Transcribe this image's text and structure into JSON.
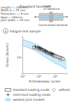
{
  "chart_data": {
    "type": "scatter",
    "title": "Standard fastener",
    "annotations": [
      "Length l = 300 mm\nWidth b = 75 mm\nThickness t = 8 mm\nSpan = 200mm\nJoint width = 25 mm",
      "Layer\nof adhesive",
      "Constrained fastener",
      "A",
      "Fatigue test sample"
    ],
    "xlabel": "N breakaway cycles",
    "ylabel": "Stress (N/mm²)",
    "log": true,
    "xlim": [
      10000,
      5000000
    ],
    "ylim": [
      300,
      5000
    ],
    "xticks": [
      {
        "value": 10000,
        "label": "10⁴"
      },
      {
        "value": 100000,
        "label": "10⁵"
      },
      {
        "value": 1000000,
        "label": "10⁶"
      }
    ],
    "yticks": [
      {
        "value": 1000,
        "label": "10³"
      }
    ],
    "grid": false,
    "legend": "bottom",
    "series": [
      {
        "name": "standard loading mode",
        "type": "scatter",
        "marker": "square",
        "color": "#444444",
        "x": [
          50000,
          80000,
          100000,
          120000,
          150000,
          200000,
          250000,
          300000,
          400000,
          500000,
          600000,
          700000,
          800000,
          1000000,
          1200000,
          1500000,
          2000000,
          2500000,
          3000000
        ],
        "values": [
          2200,
          2100,
          2000,
          1900,
          1800,
          1700,
          1600,
          1500,
          1400,
          1350,
          1300,
          1250,
          1200,
          1150,
          1100,
          1050,
          1000,
          950,
          900
        ]
      },
      {
        "name": "restricted loading mode",
        "type": "scatter",
        "marker": "plus",
        "color": "#222222",
        "x": [
          60000,
          90000,
          110000,
          130000,
          160000,
          210000,
          260000,
          310000,
          410000,
          510000,
          610000,
          710000
        ],
        "values": [
          2300,
          2200,
          2100,
          2000,
          1900,
          1750,
          1650,
          1550,
          1450,
          1400,
          1350,
          1300
        ]
      },
      {
        "name": "welded joint models",
        "type": "band",
        "color": "#88ccee",
        "x": [
          10000,
          50000,
          100000,
          200000,
          500000,
          1000000,
          2000000,
          5000000
        ],
        "upper": [
          4000,
          3000,
          2500,
          2000,
          1500,
          1200,
          1000,
          800
        ],
        "lower": [
          2500,
          1800,
          1400,
          1100,
          800,
          650,
          550,
          400
        ]
      },
      {
        "name": "adhesive joint data",
        "type": "scatter",
        "marker": "circle",
        "color": "#888888",
        "x": [
          200000,
          400000,
          800000,
          2000000
        ],
        "values": [
          1800,
          1400,
          1100,
          850
        ]
      }
    ]
  }
}
